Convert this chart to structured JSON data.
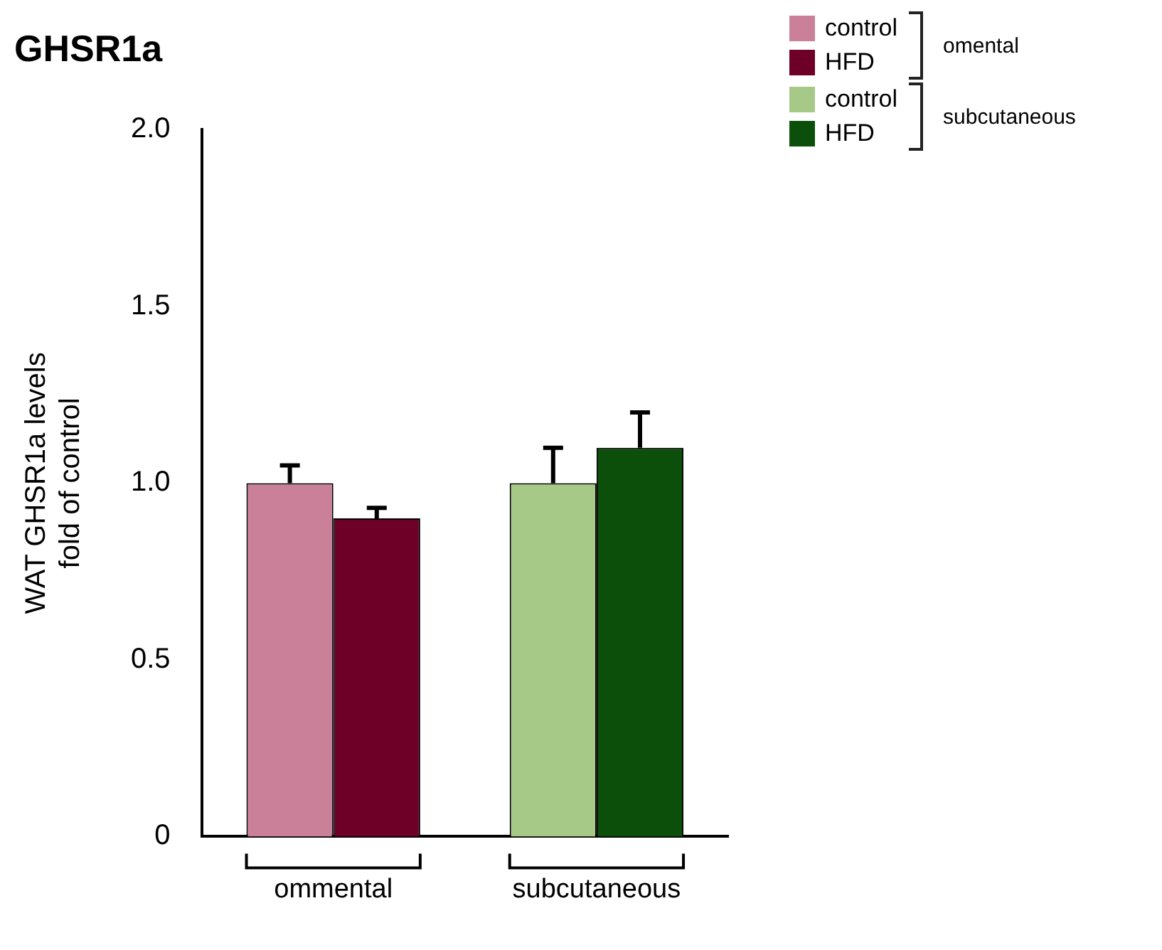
{
  "chart_data": {
    "type": "bar",
    "title": "GHSR1a",
    "ylabel": "WAT GHSR1a levels\nfold of control",
    "categories": [
      "ommental",
      "subcutaneous"
    ],
    "series": [
      {
        "name": "control",
        "color": "#c98098",
        "values": [
          1.0,
          null
        ],
        "errors": [
          0.05,
          null
        ]
      },
      {
        "name": "HFD",
        "color": "#6e0028",
        "values": [
          0.9,
          null
        ],
        "errors": [
          0.03,
          null
        ]
      },
      {
        "name": "control",
        "color": "#a6c987",
        "values": [
          null,
          1.0
        ],
        "errors": [
          null,
          0.1
        ]
      },
      {
        "name": "HFD",
        "color": "#0b4f0b",
        "values": [
          null,
          1.1
        ],
        "errors": [
          null,
          0.1
        ]
      }
    ],
    "ylim": [
      0,
      2
    ],
    "yticks": [
      0,
      {
        "value": 0.5,
        "label": "0.5"
      },
      {
        "value": 1,
        "label": "1.0"
      },
      {
        "value": 1.5,
        "label": "1.5"
      },
      {
        "value": 2,
        "label": "2.0"
      }
    ],
    "grid": false,
    "legend": "top right",
    "annotations": [
      "omental",
      "subcutaneous"
    ]
  }
}
